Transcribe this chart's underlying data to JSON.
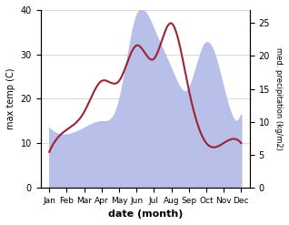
{
  "months": [
    "Jan",
    "Feb",
    "Mar",
    "Apr",
    "May",
    "Jun",
    "Jul",
    "Aug",
    "Sep",
    "Oct",
    "Nov",
    "Dec"
  ],
  "temp": [
    8,
    13,
    17,
    24,
    24,
    32,
    29,
    37,
    22,
    10,
    10,
    10
  ],
  "precip": [
    9,
    8,
    9,
    10,
    13,
    26,
    24,
    18,
    15,
    22,
    15,
    11
  ],
  "temp_color": "#9b2335",
  "precip_color_fill": "#b8bfe8",
  "ylabel_left": "max temp (C)",
  "ylabel_right": "med. precipitation (kg/m2)",
  "xlabel": "date (month)",
  "ylim_left": [
    0,
    40
  ],
  "ylim_right": [
    0,
    27
  ],
  "yticks_left": [
    0,
    10,
    20,
    30,
    40
  ],
  "yticks_right": [
    0,
    5,
    10,
    15,
    20,
    25
  ],
  "bg_color": "#ffffff",
  "grid_color": "#cccccc",
  "title": ""
}
